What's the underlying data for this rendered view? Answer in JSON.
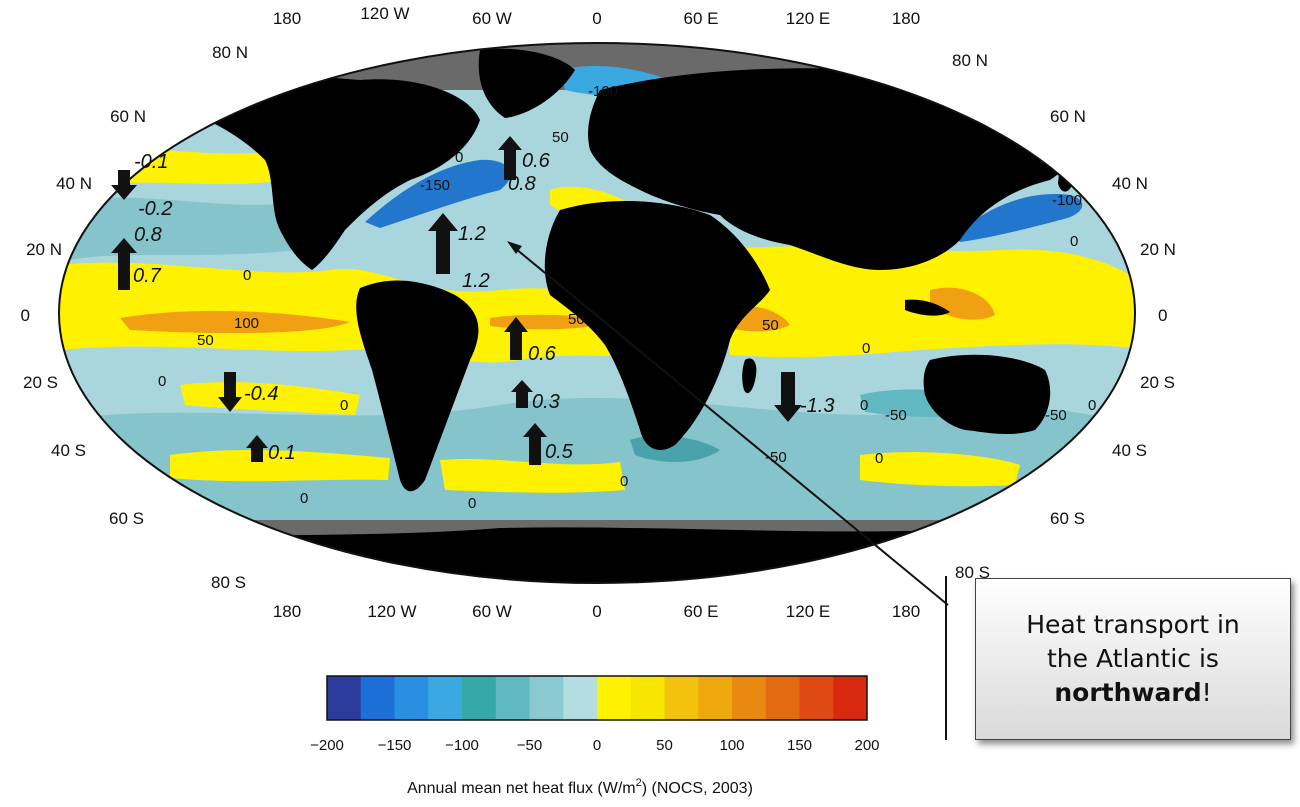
{
  "map": {
    "lon_labels_top": [
      "180",
      "120 W",
      "60 W",
      "0",
      "60 E",
      "120 E",
      "180"
    ],
    "lon_labels_bottom": [
      "180",
      "120 W",
      "60 W",
      "0",
      "60 E",
      "120 E",
      "180"
    ],
    "lat_labels": [
      "80 N",
      "60 N",
      "40 N",
      "20 N",
      "0",
      "20 S",
      "40 S",
      "60 S",
      "80 S"
    ],
    "contour_labels": [
      "-100",
      "50",
      "0",
      "-150",
      "-100",
      "0",
      "0",
      "100",
      "50",
      "50",
      "50",
      "0",
      "0",
      "0",
      "0",
      "0",
      "-50",
      "-50",
      "-50",
      "0",
      "0",
      "0",
      "0"
    ],
    "transport_values": [
      "-0.1",
      "-0.2",
      "0.8",
      "0.7",
      "0.6",
      "0.8",
      "1.2",
      "1.2",
      "0.6",
      "0.3",
      "0.5",
      "-0.4",
      "0.1",
      "-1.3"
    ]
  },
  "colorbar": {
    "colors": [
      "#2a3b9c",
      "#1c6fd6",
      "#2a8fe0",
      "#3aa9e2",
      "#35a8a8",
      "#62b8c0",
      "#8bc9d2",
      "#b3dde0",
      "#fff200",
      "#f6e600",
      "#f2c20c",
      "#eea80c",
      "#e98a10",
      "#e46a12",
      "#df4a12",
      "#d8290e"
    ],
    "tick_labels": [
      "−200",
      "−150",
      "−100",
      "−50",
      "0",
      "50",
      "100",
      "150",
      "200"
    ],
    "title_before": "Annual mean net heat flux (W/m",
    "title_sup": "2",
    "title_after": ") (NOCS, 2003)"
  },
  "callout": {
    "line1": "Heat transport in",
    "line2": "the Atlantic is",
    "bold": "northward",
    "end": "!"
  },
  "colors": {
    "land": "#0a0a0a",
    "ice": "#6a6a6a",
    "ocean_light": "#a9d6dc",
    "ocean_mid": "#7fc0c8",
    "yellow": "#fff200",
    "orange": "#f0a012",
    "blue": "#2277cc"
  }
}
